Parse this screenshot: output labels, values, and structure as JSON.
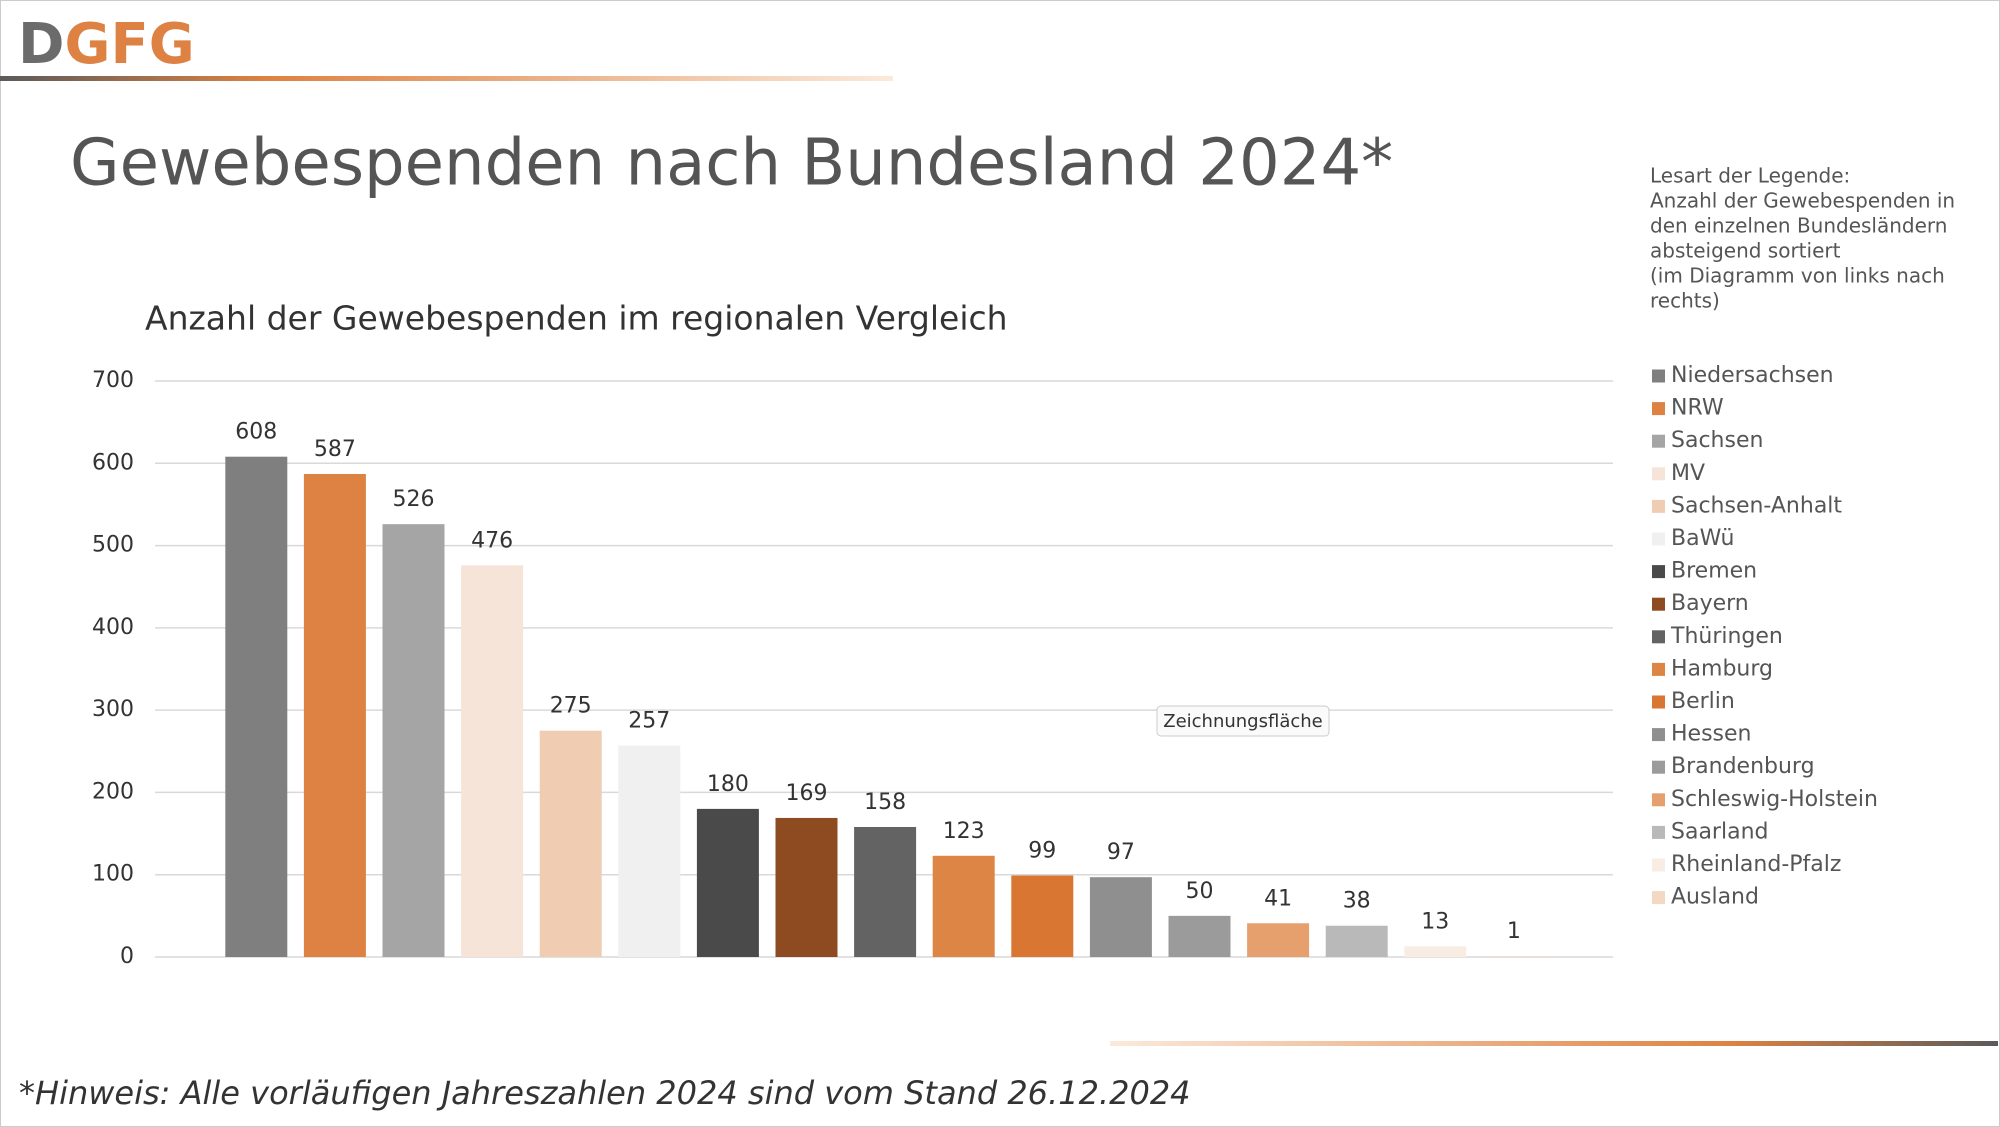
{
  "slide": {
    "logo_parts": [
      "D",
      "GFG"
    ],
    "title": "Gewebespenden nach Bundesland 2024*",
    "legend_note": [
      "Lesart der Legende:",
      "Anzahl der Gewebespenden in",
      "den einzelnen Bundesländern",
      "absteigend sortiert",
      "(im Diagramm von links nach",
      "rechts)"
    ],
    "tooltip": "Zeichnungsfläche",
    "footnote": "*Hinweis: Alle vorläufigen Jahreszahlen 2024 sind vom Stand 26.12.2024"
  },
  "chart_data": {
    "type": "bar",
    "title": "Anzahl der Gewebespenden im regionalen Vergleich",
    "categories": [
      "Niedersachsen",
      "NRW",
      "Sachsen",
      "MV",
      "Sachsen-Anhalt",
      "BaWü",
      "Bremen",
      "Bayern",
      "Thüringen",
      "Hamburg",
      "Berlin",
      "Hessen",
      "Brandenburg",
      "Schleswig-Holstein",
      "Saarland",
      "Rheinland-Pfalz",
      "Ausland"
    ],
    "values": [
      608,
      587,
      526,
      476,
      275,
      257,
      180,
      169,
      158,
      123,
      99,
      97,
      50,
      41,
      38,
      13,
      1
    ],
    "colors": [
      "#7f7f7f",
      "#dd8242",
      "#a5a5a5",
      "#f6e4d8",
      "#f0cdb2",
      "#f0f0f0",
      "#4a4a4a",
      "#8e4a20",
      "#636363",
      "#dd8544",
      "#d87632",
      "#8f8f8f",
      "#9b9b9b",
      "#e5a06e",
      "#b9b9b9",
      "#f8ece3",
      "#f3d9c4"
    ],
    "ylim": [
      0,
      700
    ],
    "yticks": [
      0,
      100,
      200,
      300,
      400,
      500,
      600,
      700
    ],
    "grid": true,
    "legend_position": "right"
  }
}
